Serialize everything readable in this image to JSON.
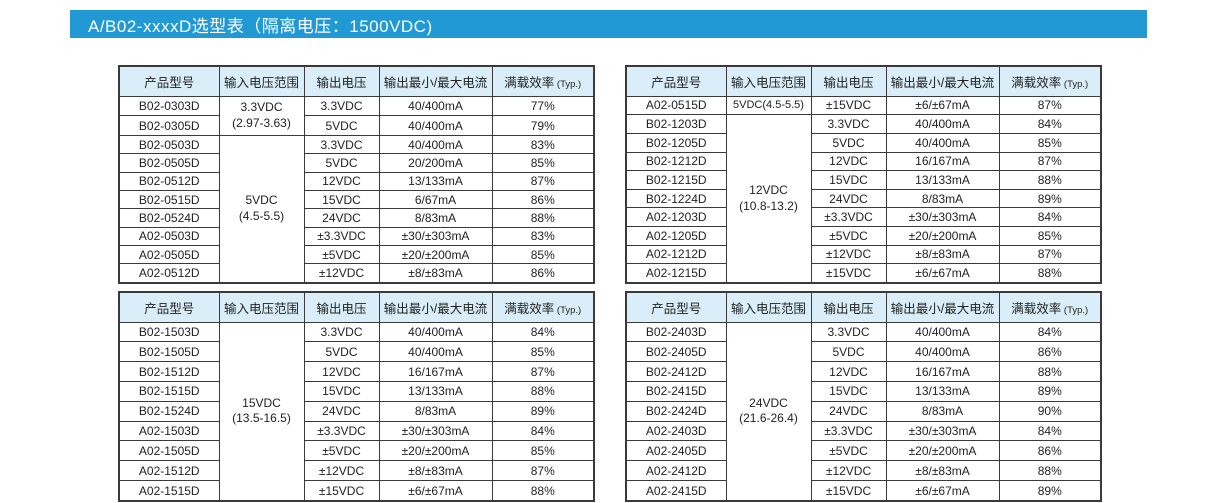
{
  "banner": {
    "title": "A/B02-xxxxD选型表（隔离电压：1500VDC)"
  },
  "colors": {
    "accent": "#2199d4",
    "header_bg": "#d9eef8",
    "border": "#3a3a3a",
    "text": "#222222"
  },
  "columns": [
    {
      "label": "产品型号"
    },
    {
      "label": "输入电压范围"
    },
    {
      "label": "输出电压"
    },
    {
      "label": "输出最小/最大电流"
    },
    {
      "label": "满载效率",
      "small": "(Typ.)"
    }
  ],
  "tables": [
    {
      "name": "table-top-left",
      "rows": [
        {
          "model": "B02-0303D",
          "input": "3.3VDC\n(2.97-3.63)",
          "input_rowspan": 2,
          "output": "3.3VDC",
          "current": "40/400mA",
          "efficiency": "77%"
        },
        {
          "model": "B02-0305D",
          "output": "5VDC",
          "current": "40/400mA",
          "efficiency": "79%"
        },
        {
          "model": "B02-0503D",
          "input": "5VDC\n(4.5-5.5)",
          "input_rowspan": 8,
          "output": "3.3VDC",
          "current": "40/400mA",
          "efficiency": "83%"
        },
        {
          "model": "B02-0505D",
          "output": "5VDC",
          "current": "20/200mA",
          "efficiency": "85%"
        },
        {
          "model": "B02-0512D",
          "output": "12VDC",
          "current": "13/133mA",
          "efficiency": "87%"
        },
        {
          "model": "B02-0515D",
          "output": "15VDC",
          "current": "6/67mA",
          "efficiency": "86%"
        },
        {
          "model": "B02-0524D",
          "output": "24VDC",
          "current": "8/83mA",
          "efficiency": "88%"
        },
        {
          "model": "A02-0503D",
          "output": "±3.3VDC",
          "current": "±30/±303mA",
          "efficiency": "83%"
        },
        {
          "model": "A02-0505D",
          "output": "±5VDC",
          "current": "±20/±200mA",
          "efficiency": "85%"
        },
        {
          "model": "A02-0512D",
          "output": "±12VDC",
          "current": "±8/±83mA",
          "efficiency": "86%"
        }
      ]
    },
    {
      "name": "table-top-right",
      "rows": [
        {
          "model": "A02-0515D",
          "input": "5VDC(4.5-5.5)",
          "input_rowspan": 1,
          "output": "±15VDC",
          "current": "±6/±67mA",
          "efficiency": "87%"
        },
        {
          "model": "B02-1203D",
          "input": "12VDC\n(10.8-13.2)",
          "input_rowspan": 9,
          "output": "3.3VDC",
          "current": "40/400mA",
          "efficiency": "84%"
        },
        {
          "model": "B02-1205D",
          "output": "5VDC",
          "current": "40/400mA",
          "efficiency": "85%"
        },
        {
          "model": "B02-1212D",
          "output": "12VDC",
          "current": "16/167mA",
          "efficiency": "87%"
        },
        {
          "model": "B02-1215D",
          "output": "15VDC",
          "current": "13/133mA",
          "efficiency": "88%"
        },
        {
          "model": "B02-1224D",
          "output": "24VDC",
          "current": "8/83mA",
          "efficiency": "89%"
        },
        {
          "model": "A02-1203D",
          "output": "±3.3VDC",
          "current": "±30/±303mA",
          "efficiency": "84%"
        },
        {
          "model": "A02-1205D",
          "output": "±5VDC",
          "current": "±20/±200mA",
          "efficiency": "85%"
        },
        {
          "model": "A02-1212D",
          "output": "±12VDC",
          "current": "±8/±83mA",
          "efficiency": "87%"
        },
        {
          "model": "A02-1215D",
          "output": "±15VDC",
          "current": "±6/±67mA",
          "efficiency": "88%"
        }
      ]
    },
    {
      "name": "table-bottom-left",
      "rows": [
        {
          "model": "B02-1503D",
          "input": "15VDC\n(13.5-16.5)",
          "input_rowspan": 9,
          "output": "3.3VDC",
          "current": "40/400mA",
          "efficiency": "84%"
        },
        {
          "model": "B02-1505D",
          "output": "5VDC",
          "current": "40/400mA",
          "efficiency": "85%"
        },
        {
          "model": "B02-1512D",
          "output": "12VDC",
          "current": "16/167mA",
          "efficiency": "87%"
        },
        {
          "model": "B02-1515D",
          "output": "15VDC",
          "current": "13/133mA",
          "efficiency": "88%"
        },
        {
          "model": "B02-1524D",
          "output": "24VDC",
          "current": "8/83mA",
          "efficiency": "89%"
        },
        {
          "model": "A02-1503D",
          "output": "±3.3VDC",
          "current": "±30/±303mA",
          "efficiency": "84%"
        },
        {
          "model": "A02-1505D",
          "output": "±5VDC",
          "current": "±20/±200mA",
          "efficiency": "85%"
        },
        {
          "model": "A02-1512D",
          "output": "±12VDC",
          "current": "±8/±83mA",
          "efficiency": "87%"
        },
        {
          "model": "A02-1515D",
          "output": "±15VDC",
          "current": "±6/±67mA",
          "efficiency": "88%"
        }
      ]
    },
    {
      "name": "table-bottom-right",
      "rows": [
        {
          "model": "B02-2403D",
          "input": "24VDC\n(21.6-26.4)",
          "input_rowspan": 9,
          "output": "3.3VDC",
          "current": "40/400mA",
          "efficiency": "84%"
        },
        {
          "model": "B02-2405D",
          "output": "5VDC",
          "current": "40/400mA",
          "efficiency": "86%"
        },
        {
          "model": "B02-2412D",
          "output": "12VDC",
          "current": "16/167mA",
          "efficiency": "88%"
        },
        {
          "model": "B02-2415D",
          "output": "15VDC",
          "current": "13/133mA",
          "efficiency": "89%"
        },
        {
          "model": "B02-2424D",
          "output": "24VDC",
          "current": "8/83mA",
          "efficiency": "90%"
        },
        {
          "model": "A02-2403D",
          "output": "±3.3VDC",
          "current": "±30/±303mA",
          "efficiency": "84%"
        },
        {
          "model": "A02-2405D",
          "output": "±5VDC",
          "current": "±20/±200mA",
          "efficiency": "86%"
        },
        {
          "model": "A02-2412D",
          "output": "±12VDC",
          "current": "±8/±83mA",
          "efficiency": "88%"
        },
        {
          "model": "A02-2415D",
          "output": "±15VDC",
          "current": "±6/±67mA",
          "efficiency": "89%"
        }
      ]
    }
  ]
}
